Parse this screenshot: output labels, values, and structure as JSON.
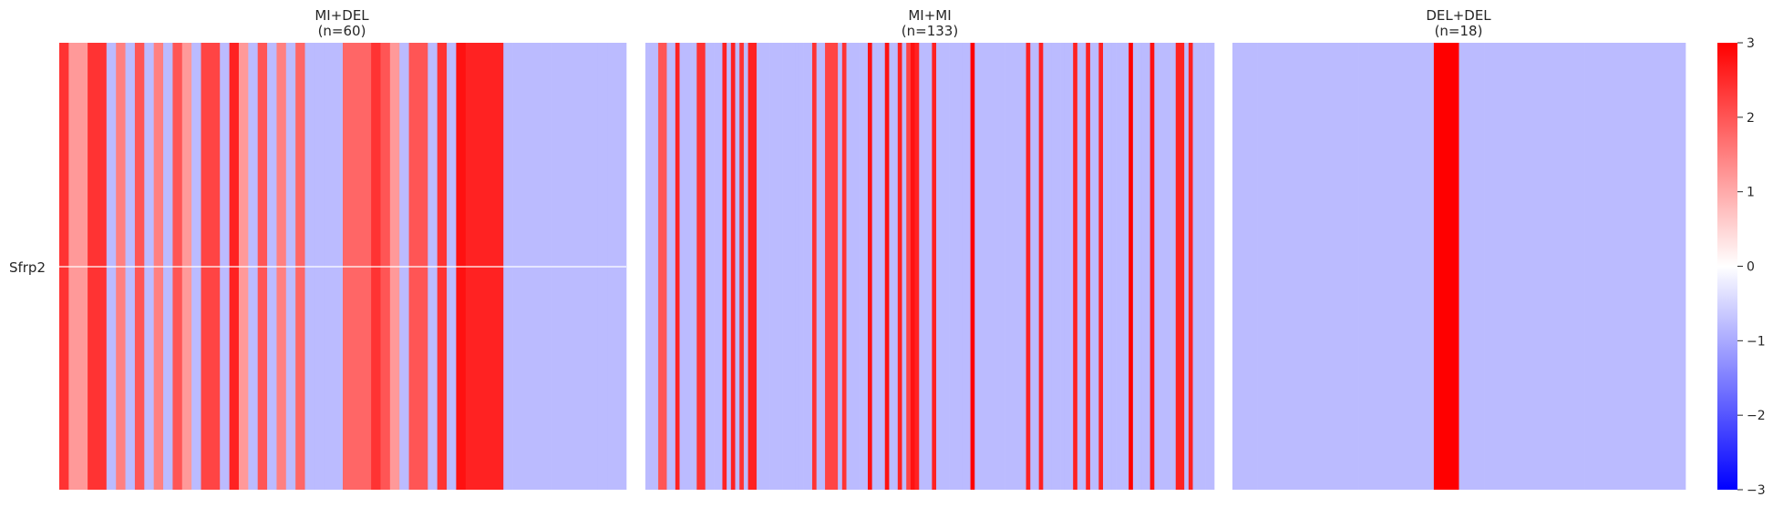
{
  "chart_data": {
    "type": "heatmap",
    "row_labels": [
      "Sfrp2"
    ],
    "colorbar": {
      "min": -3,
      "max": 3,
      "ticks": [
        "3",
        "2",
        "1",
        "0",
        "−1",
        "−2",
        "−3"
      ],
      "tick_values": [
        3,
        2,
        1,
        0,
        -1,
        -2,
        -3
      ],
      "colors": [
        "#0000ff",
        "#ffffff",
        "#ff0000"
      ]
    },
    "panels": [
      {
        "title_line1": "MI+DEL",
        "title_line2": "(n=60)",
        "n": 60,
        "values": [
          2.4,
          1.2,
          1.2,
          2.4,
          2.4,
          -0.8,
          1.5,
          -0.8,
          2.0,
          -0.8,
          1.5,
          -0.8,
          2.0,
          1.2,
          -0.8,
          2.2,
          2.2,
          -0.8,
          2.6,
          1.2,
          -0.8,
          2.0,
          -0.8,
          1.5,
          -0.8,
          1.8,
          -0.8,
          -0.8,
          -0.8,
          -0.8,
          1.8,
          1.8,
          1.8,
          2.4,
          2.0,
          1.2,
          -0.8,
          2.0,
          2.0,
          -0.8,
          2.4,
          -0.8,
          2.8,
          2.6,
          2.6,
          2.6,
          2.6,
          -0.8,
          -0.8,
          -0.8,
          -0.8,
          -0.8,
          -0.8,
          -0.8,
          -0.8,
          -0.8,
          -0.8,
          -0.8,
          -0.8,
          -0.8
        ]
      },
      {
        "title_line1": "MI+MI",
        "title_line2": "(n=133)",
        "n": 133,
        "values": [
          -0.8,
          -0.8,
          -0.8,
          2.0,
          2.0,
          -0.8,
          -0.8,
          2.6,
          -0.8,
          -0.8,
          -0.8,
          -0.8,
          2.4,
          2.4,
          -0.8,
          -0.8,
          -0.8,
          -0.8,
          2.6,
          -0.8,
          2.6,
          -0.8,
          2.4,
          -0.8,
          2.6,
          2.6,
          -0.8,
          -0.8,
          -0.8,
          -0.8,
          -0.8,
          -0.8,
          -0.8,
          -0.8,
          -0.8,
          -0.8,
          -0.8,
          -0.8,
          -0.8,
          2.4,
          -0.8,
          -0.8,
          2.2,
          2.2,
          2.2,
          -0.8,
          2.4,
          -0.8,
          -0.8,
          -0.8,
          -0.8,
          -0.8,
          2.8,
          -0.8,
          -0.8,
          -0.8,
          2.8,
          -0.8,
          -0.8,
          2.6,
          -0.8,
          2.2,
          2.8,
          2.6,
          -0.8,
          -0.8,
          -0.8,
          2.6,
          -0.8,
          -0.8,
          -0.8,
          -0.8,
          -0.8,
          -0.8,
          -0.8,
          -0.8,
          3.0,
          -0.8,
          -0.8,
          -0.8,
          -0.8,
          -0.8,
          -0.8,
          -0.8,
          -0.8,
          -0.8,
          -0.8,
          -0.8,
          -0.8,
          2.6,
          -0.8,
          -0.8,
          2.6,
          -0.8,
          -0.8,
          -0.8,
          -0.8,
          -0.8,
          -0.8,
          -0.8,
          2.6,
          -0.8,
          -0.8,
          2.6,
          -0.8,
          -0.8,
          2.6,
          -0.8,
          -0.8,
          -0.8,
          -0.8,
          -0.8,
          -0.8,
          3.0,
          -0.8,
          -0.8,
          -0.8,
          -0.8,
          2.8,
          -0.8,
          -0.8,
          -0.8,
          -0.8,
          -0.8,
          2.6,
          2.6,
          -0.8,
          2.6,
          -0.8,
          -0.8,
          -0.8,
          -0.8,
          -0.8
        ]
      },
      {
        "title_line1": "DEL+DEL",
        "title_line2": "(n=18)",
        "n": 18,
        "values": [
          -0.8,
          -0.8,
          -0.8,
          -0.8,
          -0.8,
          -0.8,
          -0.8,
          -0.8,
          3.0,
          -0.8,
          -0.8,
          -0.8,
          -0.8,
          -0.8,
          -0.8,
          -0.8,
          -0.8,
          -0.8
        ]
      }
    ]
  }
}
